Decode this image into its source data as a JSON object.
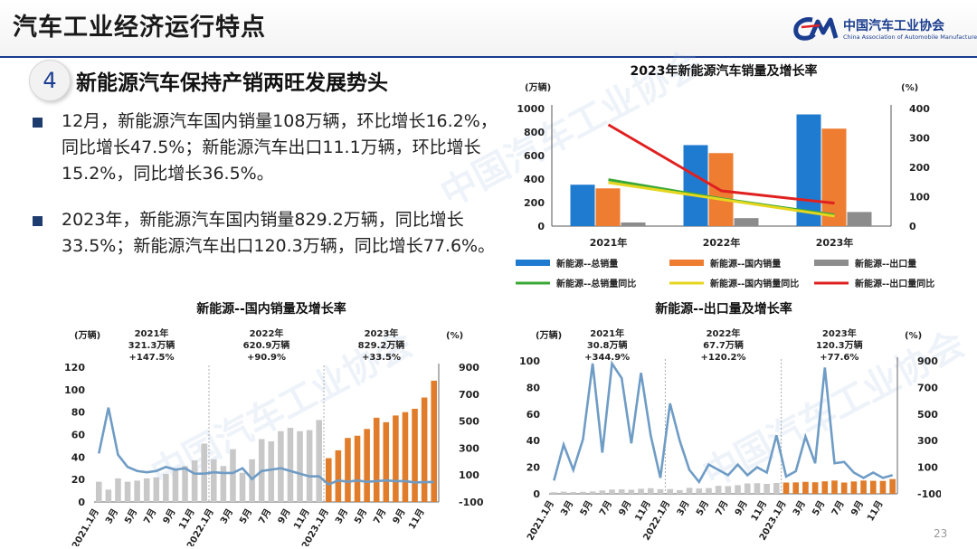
{
  "header": {
    "title": "汽车工业经济运行特点"
  },
  "logo": {
    "cn": "中国汽车工业协会",
    "en": "China Association of Automobile Manufacturers",
    "mark": "CAAM-logo-icon"
  },
  "watermark": {
    "text": "中国汽车工业协会"
  },
  "section": {
    "number": "4",
    "title": "新能源汽车保持产销两旺发展势头"
  },
  "bullets": [
    "12月，新能源汽车国内销量108万辆，环比增长16.2%，同比增长47.5%；新能源汽车出口11.1万辆，环比增长15.2%，同比增长36.5%。",
    "2023年，新能源汽车国内销量829.2万辆，同比增长33.5%；新能源汽车出口120.3万辆，同比增长77.6%。"
  ],
  "page_number": "23",
  "chart_data": [
    {
      "id": "annual",
      "type": "bar",
      "title": "2023年新能源汽车销量及增长率",
      "ylabel_left": "(万辆)",
      "ylabel_right": "(%)",
      "ylim_left": [
        0,
        1000
      ],
      "ylim_right": [
        0,
        400
      ],
      "yticks_left": [
        "0",
        "200",
        "400",
        "600",
        "800",
        "1000"
      ],
      "yticks_right": [
        "0",
        "100",
        "200",
        "300",
        "400"
      ],
      "categories": [
        "2021年",
        "2022年",
        "2023年"
      ],
      "series": [
        {
          "name": "新能源--总销量",
          "kind": "bar",
          "color": "#1f7bd0",
          "values": [
            352,
            689,
            950
          ]
        },
        {
          "name": "新能源--国内销量",
          "kind": "bar",
          "color": "#ee7d31",
          "values": [
            321,
            621,
            829
          ]
        },
        {
          "name": "新能源--出口量",
          "kind": "bar",
          "color": "#8c8c8c",
          "values": [
            31,
            68,
            120
          ]
        },
        {
          "name": "新能源--总销量同比",
          "kind": "line",
          "axis": "right",
          "color": "#3aa836",
          "values": [
            158,
            93,
            38
          ]
        },
        {
          "name": "新能源--国内销量同比",
          "kind": "line",
          "axis": "right",
          "color": "#e6d61e",
          "values": [
            148,
            91,
            34
          ]
        },
        {
          "name": "新能源--出口量同比",
          "kind": "line",
          "axis": "right",
          "color": "#e02020",
          "values": [
            345,
            120,
            78
          ]
        }
      ],
      "legend_position": "bottom"
    },
    {
      "id": "domestic",
      "type": "bar",
      "title": "新能源--国内销量及增长率",
      "ylabel_left": "(万辆)",
      "ylabel_right": "(%)",
      "ylim_left": [
        0,
        120
      ],
      "ylim_right": [
        -100,
        900
      ],
      "yticks_left": [
        "0",
        "20",
        "40",
        "60",
        "80",
        "100",
        "120"
      ],
      "yticks_right": [
        "-100",
        "100",
        "300",
        "500",
        "700",
        "900"
      ],
      "xtick_labels": [
        "2021.1月",
        "3月",
        "5月",
        "7月",
        "9月",
        "11月",
        "2022.1月",
        "3月",
        "5月",
        "7月",
        "9月",
        "11月",
        "2023.1月",
        "3月",
        "5月",
        "7月",
        "9月",
        "11月"
      ],
      "annotations": [
        {
          "year": "2021年",
          "value": "321.3万辆",
          "growth": "+147.5%"
        },
        {
          "year": "2022年",
          "value": "620.9万辆",
          "growth": "+90.9%"
        },
        {
          "year": "2023年",
          "value": "829.2万辆",
          "growth": "+33.5%"
        }
      ],
      "bars_2021_2022": [
        18,
        11,
        21,
        18,
        19,
        21,
        22,
        25,
        30,
        32,
        37,
        52,
        38,
        32,
        47,
        26,
        38,
        56,
        54,
        63,
        66,
        63,
        64,
        73
      ],
      "bars_2023": [
        39,
        46,
        57,
        59,
        65,
        75,
        71,
        77,
        80,
        83,
        93,
        108
      ],
      "growth_line": [
        260,
        600,
        250,
        160,
        130,
        120,
        130,
        160,
        140,
        150,
        110,
        110,
        120,
        115,
        115,
        150,
        70,
        130,
        140,
        150,
        130,
        110,
        90,
        90,
        30,
        60,
        50,
        60,
        50,
        55,
        60,
        55,
        55,
        45,
        47,
        48
      ]
    },
    {
      "id": "export",
      "type": "bar",
      "title": "新能源--出口量及增长率",
      "ylabel_left": "(万辆)",
      "ylabel_right": "(%)",
      "ylim_left": [
        0,
        100
      ],
      "ylim_right": [
        -100,
        900
      ],
      "yticks_left": [
        "0",
        "20",
        "40",
        "60",
        "80",
        "100"
      ],
      "yticks_right": [
        "-100",
        "100",
        "300",
        "500",
        "700",
        "900"
      ],
      "xtick_labels": [
        "2021.1月",
        "3月",
        "5月",
        "7月",
        "9月",
        "11月",
        "2022.1月",
        "3月",
        "5月",
        "7月",
        "9月",
        "11月",
        "2023.1月",
        "3月",
        "5月",
        "7月",
        "9月",
        "11月"
      ],
      "annotations": [
        {
          "year": "2021年",
          "value": "30.8万辆",
          "growth": "+344.9%"
        },
        {
          "year": "2022年",
          "value": "67.7万辆",
          "growth": "+120.2%"
        },
        {
          "year": "2023年",
          "value": "120.3万辆",
          "growth": "+77.6%"
        }
      ],
      "bars_2021_2022": [
        1.2,
        1.6,
        1.3,
        1.5,
        1.8,
        2.5,
        3.2,
        3.4,
        3.1,
        3.8,
        4.2,
        3.5,
        3.6,
        2.8,
        4.5,
        4.0,
        4.3,
        6.0,
        5.8,
        6.5,
        7.8,
        8.0,
        7.5,
        8.2
      ],
      "bars_2023": [
        8.5,
        8.6,
        9.0,
        8.7,
        9.4,
        10.0,
        8.5,
        9.3,
        10.0,
        9.8,
        9.7,
        11.1
      ],
      "growth_line": [
        0,
        270,
        80,
        310,
        880,
        210,
        880,
        770,
        280,
        810,
        340,
        20,
        580,
        300,
        80,
        -10,
        120,
        80,
        40,
        120,
        40,
        100,
        60,
        340,
        30,
        70,
        330,
        130,
        850,
        130,
        140,
        60,
        20,
        60,
        20,
        40
      ]
    }
  ]
}
